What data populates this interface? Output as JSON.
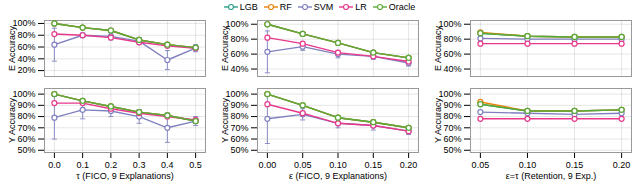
{
  "chart_data": [
    {
      "type": "line",
      "ylabel": "E Accuracy",
      "tick_labels": "y",
      "grid": true,
      "marker": "circle",
      "x": [
        0,
        0.1,
        0.2,
        0.3,
        0.4,
        0.5
      ],
      "xlim": [
        -0.035,
        0.535
      ],
      "xticks": [
        0,
        0.1,
        0.2,
        0.3,
        0.4,
        0.5
      ],
      "ylim": [
        0.1,
        1.05
      ],
      "yticks": [
        {
          "value": 0.2,
          "label": "20%"
        },
        {
          "value": 0.4,
          "label": "40%"
        },
        {
          "value": 0.6,
          "label": "60%"
        },
        {
          "value": 0.8,
          "label": "80%"
        },
        {
          "value": 1.0,
          "label": "100%"
        }
      ],
      "series": [
        {
          "name": "LGB",
          "color": "#2ca089",
          "values": [
            1.0,
            0.93,
            0.88,
            0.72,
            0.64,
            0.59
          ]
        },
        {
          "name": "RF",
          "color": "#E8820C",
          "values": [
            1.0,
            0.93,
            0.88,
            0.72,
            0.64,
            0.59
          ]
        },
        {
          "name": "SVM",
          "color": "#8080c0",
          "values": [
            0.64,
            0.8,
            0.78,
            0.7,
            0.38,
            0.58
          ],
          "yerr": [
            0.28,
            0.04,
            0.06,
            0.06,
            0.16,
            0.06
          ]
        },
        {
          "name": "LR",
          "color": "#e8388a",
          "values": [
            0.82,
            0.8,
            0.76,
            0.68,
            0.62,
            0.58
          ]
        },
        {
          "name": "Oracle",
          "color": "#5aaa3a",
          "values": [
            1.0,
            0.93,
            0.88,
            0.72,
            0.64,
            0.59
          ]
        }
      ]
    },
    {
      "type": "line",
      "ylabel": "E Accuracy",
      "tick_labels": "y",
      "grid": true,
      "marker": "circle",
      "legend": "top",
      "x": [
        0,
        0.05,
        0.1,
        0.15,
        0.2
      ],
      "xlim": [
        -0.014,
        0.214
      ],
      "xticks": [
        0,
        0.05,
        0.1,
        0.15,
        0.2
      ],
      "ylim": [
        0.3,
        1.05
      ],
      "yticks": [
        {
          "value": 0.4,
          "label": "40%"
        },
        {
          "value": 0.6,
          "label": "60%"
        },
        {
          "value": 0.8,
          "label": "80%"
        },
        {
          "value": 1.0,
          "label": "100%"
        }
      ],
      "series": [
        {
          "name": "LGB",
          "color": "#2ca089",
          "values": [
            1.0,
            0.87,
            0.75,
            0.62,
            0.55
          ]
        },
        {
          "name": "RF",
          "color": "#E8820C",
          "values": [
            1.0,
            0.87,
            0.75,
            0.62,
            0.55
          ]
        },
        {
          "name": "SVM",
          "color": "#8080c0",
          "values": [
            0.63,
            0.7,
            0.6,
            0.57,
            0.48
          ],
          "yerr": [
            0.28,
            0.05,
            0.05,
            0.04,
            0.04
          ]
        },
        {
          "name": "LR",
          "color": "#e8388a",
          "values": [
            0.82,
            0.74,
            0.62,
            0.57,
            0.5
          ]
        },
        {
          "name": "Oracle",
          "color": "#5aaa3a",
          "values": [
            1.0,
            0.87,
            0.75,
            0.62,
            0.55
          ]
        }
      ]
    },
    {
      "type": "line",
      "ylabel": "E Accuracy",
      "tick_labels": "y",
      "grid": true,
      "marker": "circle",
      "x": [
        0.05,
        0.1,
        0.15,
        0.2
      ],
      "xlim": [
        0.0395,
        0.2105
      ],
      "xticks": [
        0.05,
        0.1,
        0.15,
        0.2
      ],
      "ylim": [
        0.3,
        1.05
      ],
      "yticks": [
        {
          "value": 0.4,
          "label": "40%"
        },
        {
          "value": 0.6,
          "label": "60%"
        },
        {
          "value": 0.8,
          "label": "80%"
        },
        {
          "value": 1.0,
          "label": "100%"
        }
      ],
      "series": [
        {
          "name": "LGB",
          "color": "#2ca089",
          "values": [
            0.88,
            0.84,
            0.83,
            0.83
          ]
        },
        {
          "name": "RF",
          "color": "#E8820C",
          "values": [
            0.89,
            0.84,
            0.83,
            0.83
          ]
        },
        {
          "name": "SVM",
          "color": "#8080c0",
          "values": [
            0.81,
            0.8,
            0.8,
            0.8
          ]
        },
        {
          "name": "LR",
          "color": "#e8388a",
          "values": [
            0.74,
            0.74,
            0.74,
            0.74
          ]
        },
        {
          "name": "Oracle",
          "color": "#5aaa3a",
          "values": [
            0.88,
            0.84,
            0.83,
            0.83
          ]
        }
      ]
    },
    {
      "type": "line",
      "ylabel": "Y Accuracy",
      "xlabel": "τ (FICO, 9 Explanations)",
      "grid": true,
      "marker": "circle",
      "x": [
        0,
        0.1,
        0.2,
        0.3,
        0.4,
        0.5
      ],
      "xlim": [
        -0.035,
        0.535
      ],
      "xticks": [
        {
          "value": 0,
          "label": "0.0"
        },
        0.1,
        0.2,
        0.3,
        0.4,
        0.5
      ],
      "ylim": [
        0.48,
        1.05
      ],
      "yticks": [
        {
          "value": 0.5,
          "label": "50%"
        },
        {
          "value": 0.6,
          "label": "60%"
        },
        {
          "value": 0.7,
          "label": "70%"
        },
        {
          "value": 0.8,
          "label": "80%"
        },
        {
          "value": 0.9,
          "label": "90%"
        },
        {
          "value": 1.0,
          "label": "100%"
        }
      ],
      "series": [
        {
          "name": "LGB",
          "color": "#2ca089",
          "values": [
            1.0,
            0.94,
            0.89,
            0.84,
            0.81,
            0.76
          ]
        },
        {
          "name": "RF",
          "color": "#E8820C",
          "values": [
            1.0,
            0.94,
            0.89,
            0.84,
            0.81,
            0.76
          ]
        },
        {
          "name": "SVM",
          "color": "#8080c0",
          "values": [
            0.79,
            0.86,
            0.85,
            0.8,
            0.7,
            0.76
          ],
          "yerr": [
            0.19,
            0.08,
            0.05,
            0.06,
            0.13,
            0.04
          ]
        },
        {
          "name": "LR",
          "color": "#e8388a",
          "values": [
            0.92,
            0.92,
            0.87,
            0.83,
            0.8,
            0.77
          ]
        },
        {
          "name": "Oracle",
          "color": "#5aaa3a",
          "values": [
            1.0,
            0.94,
            0.89,
            0.84,
            0.81,
            0.76
          ]
        }
      ]
    },
    {
      "type": "line",
      "ylabel": "Y Accuracy",
      "xlabel": "ε (FICO, 9 Explanations)",
      "grid": true,
      "marker": "circle",
      "x": [
        0,
        0.05,
        0.1,
        0.15,
        0.2
      ],
      "xlim": [
        -0.014,
        0.214
      ],
      "xticks": [
        {
          "value": 0,
          "label": "0.00"
        },
        0.05,
        {
          "value": 0.1,
          "label": "0.10"
        },
        0.15,
        {
          "value": 0.2,
          "label": "0.20"
        }
      ],
      "ylim": [
        0.48,
        1.05
      ],
      "yticks": [
        {
          "value": 0.5,
          "label": "50%"
        },
        {
          "value": 0.6,
          "label": "60%"
        },
        {
          "value": 0.7,
          "label": "70%"
        },
        {
          "value": 0.8,
          "label": "80%"
        },
        {
          "value": 0.9,
          "label": "90%"
        },
        {
          "value": 1.0,
          "label": "100%"
        }
      ],
      "series": [
        {
          "name": "LGB",
          "color": "#2ca089",
          "values": [
            1.0,
            0.9,
            0.79,
            0.75,
            0.7
          ]
        },
        {
          "name": "RF",
          "color": "#E8820C",
          "values": [
            1.0,
            0.9,
            0.79,
            0.75,
            0.7
          ]
        },
        {
          "name": "SVM",
          "color": "#8080c0",
          "values": [
            0.78,
            0.82,
            0.74,
            0.72,
            0.67
          ],
          "yerr": [
            0.22,
            0.05,
            0.04,
            0.04,
            0.03
          ]
        },
        {
          "name": "LR",
          "color": "#e8388a",
          "values": [
            0.91,
            0.83,
            0.74,
            0.72,
            0.67
          ]
        },
        {
          "name": "Oracle",
          "color": "#5aaa3a",
          "values": [
            1.0,
            0.9,
            0.79,
            0.75,
            0.7
          ]
        }
      ]
    },
    {
      "type": "line",
      "ylabel": "Y Accuracy",
      "xlabel": "ε=τ (Retention, 9 Exp.)",
      "grid": true,
      "marker": "circle",
      "x": [
        0.05,
        0.1,
        0.15,
        0.2
      ],
      "xlim": [
        0.0395,
        0.2105
      ],
      "xticks": [
        0.05,
        {
          "value": 0.1,
          "label": "0.10"
        },
        0.15,
        {
          "value": 0.2,
          "label": "0.20"
        }
      ],
      "ylim": [
        0.48,
        1.05
      ],
      "yticks": [
        {
          "value": 0.5,
          "label": "50%"
        },
        {
          "value": 0.6,
          "label": "60%"
        },
        {
          "value": 0.7,
          "label": "70%"
        },
        {
          "value": 0.8,
          "label": "80%"
        },
        {
          "value": 0.9,
          "label": "90%"
        },
        {
          "value": 1.0,
          "label": "100%"
        }
      ],
      "series": [
        {
          "name": "LGB",
          "color": "#2ca089",
          "values": [
            0.91,
            0.85,
            0.85,
            0.86
          ]
        },
        {
          "name": "RF",
          "color": "#E8820C",
          "values": [
            0.93,
            0.85,
            0.85,
            0.86
          ]
        },
        {
          "name": "SVM",
          "color": "#8080c0",
          "values": [
            0.84,
            0.83,
            0.82,
            0.83
          ]
        },
        {
          "name": "LR",
          "color": "#e8388a",
          "values": [
            0.78,
            0.78,
            0.78,
            0.78
          ]
        },
        {
          "name": "Oracle",
          "color": "#5aaa3a",
          "values": [
            0.91,
            0.85,
            0.85,
            0.86
          ]
        }
      ]
    }
  ]
}
